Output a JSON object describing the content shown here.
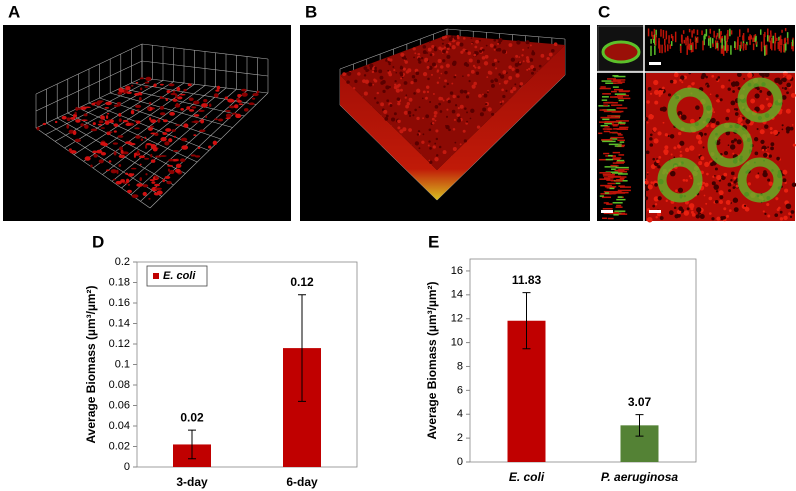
{
  "image_panels": [
    "A",
    "B",
    "C"
  ],
  "chart_data": [
    {
      "type": "bar",
      "panel_label": "D",
      "ylabel": "Average Biomass (µm³/µm²)",
      "categories": [
        "3-day",
        "6-day"
      ],
      "series": [
        {
          "name": "E. coli",
          "color": "#c00000",
          "values": [
            0.022,
            0.116
          ],
          "errors": [
            0.014,
            0.052
          ],
          "value_labels": [
            "0.02",
            "0.12"
          ]
        }
      ],
      "ylim": [
        0,
        0.2
      ],
      "yticks": [
        0,
        0.02,
        0.04,
        0.06,
        0.08,
        0.1,
        0.12,
        0.14,
        0.16,
        0.18,
        0.2
      ],
      "legend": "upper left"
    },
    {
      "type": "bar",
      "panel_label": "E",
      "ylabel": "Average Biomass (µm³/µm²)",
      "categories": [
        "E. coli",
        "P. aeruginosa"
      ],
      "series": [
        {
          "colors": [
            "#c00000",
            "#548235"
          ],
          "values": [
            11.83,
            3.07
          ],
          "errors": [
            2.35,
            0.9
          ]
        }
      ],
      "ylim": [
        0,
        17
      ],
      "yticks": [
        0,
        2,
        4,
        6,
        8,
        10,
        12,
        14,
        16
      ]
    }
  ]
}
